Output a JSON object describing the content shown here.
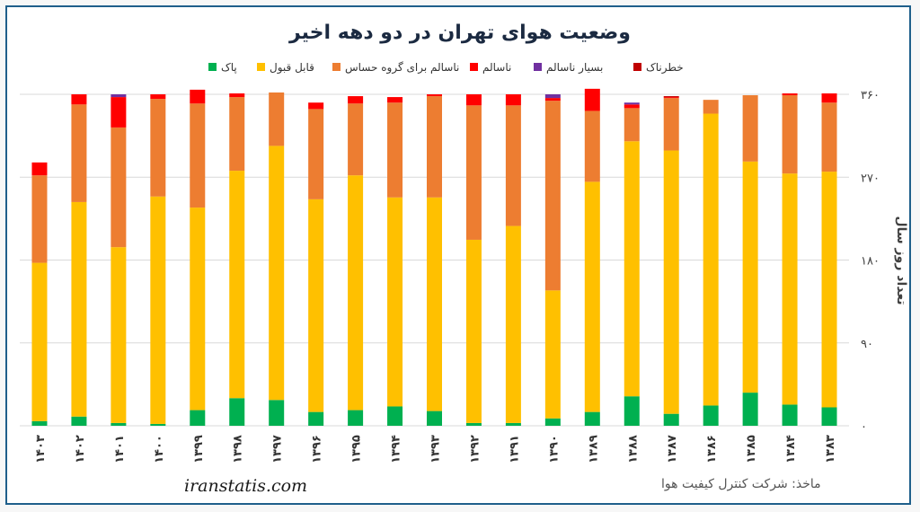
{
  "title": "وضعیت هوای تهران در دو دهه اخیر",
  "footer": {
    "site": "iranstatis.com",
    "source": "ماخذ: شرکت کنترل کیفیت هوا"
  },
  "chart_data": {
    "type": "bar",
    "stacked": true,
    "ylabel": "تعداد روز سال",
    "ylim": [
      0,
      360
    ],
    "yticks": [
      "۰",
      "۹۰",
      "۱۸۰",
      "۲۷۰",
      "۳۶۰"
    ],
    "y_axis_side": "right",
    "grid": true,
    "legend_position": "top",
    "categories": [
      "۱۴۰۳",
      "۱۴۰۲",
      "۱۴۰۱",
      "۱۴۰۰",
      "۱۳۹۹",
      "۱۳۹۸",
      "۱۳۹۷",
      "۱۳۹۶",
      "۱۳۹۵",
      "۱۳۹۴",
      "۱۳۹۳",
      "۱۳۹۲",
      "۱۳۹۱",
      "۱۳۹۰",
      "۱۳۸۹",
      "۱۳۸۸",
      "۱۳۸۷",
      "۱۳۸۶",
      "۱۳۸۵",
      "۱۳۸۴",
      "۱۳۸۳"
    ],
    "series": [
      {
        "name": "پاک",
        "color": "#00b050",
        "values": [
          5,
          10,
          3,
          2,
          17,
          30,
          28,
          15,
          17,
          21,
          16,
          3,
          3,
          8,
          15,
          32,
          13,
          22,
          36,
          23,
          20
        ]
      },
      {
        "name": "قابل قبول",
        "color": "#ffc000",
        "values": [
          172,
          233,
          191,
          247,
          220,
          247,
          276,
          231,
          255,
          227,
          232,
          199,
          214,
          139,
          250,
          277,
          286,
          317,
          251,
          251,
          256
        ]
      },
      {
        "name": "ناسالم  برای گروه حساس",
        "color": "#ed7d31",
        "values": [
          95,
          106,
          130,
          106,
          113,
          80,
          58,
          98,
          78,
          103,
          110,
          146,
          131,
          206,
          77,
          36,
          57,
          15,
          72,
          85,
          75
        ]
      },
      {
        "name": "ناسالم",
        "color": "#ff0000",
        "values": [
          14,
          11,
          33,
          5,
          15,
          4,
          0,
          7,
          8,
          6,
          2,
          12,
          12,
          3,
          24,
          4,
          1,
          0,
          0,
          2,
          10
        ]
      },
      {
        "name": "بسیار ناسالم",
        "color": "#7030a0",
        "values": [
          0,
          0,
          3,
          0,
          0,
          0,
          0,
          0,
          0,
          0,
          0,
          0,
          0,
          4,
          0,
          2,
          0,
          0,
          0,
          0,
          0
        ]
      },
      {
        "name": "خطرناک",
        "color": "#c00000",
        "values": [
          0,
          0,
          0,
          0,
          0,
          0,
          0,
          0,
          0,
          0,
          0,
          0,
          0,
          0,
          0,
          0,
          1,
          0,
          0,
          0,
          0
        ]
      }
    ]
  }
}
